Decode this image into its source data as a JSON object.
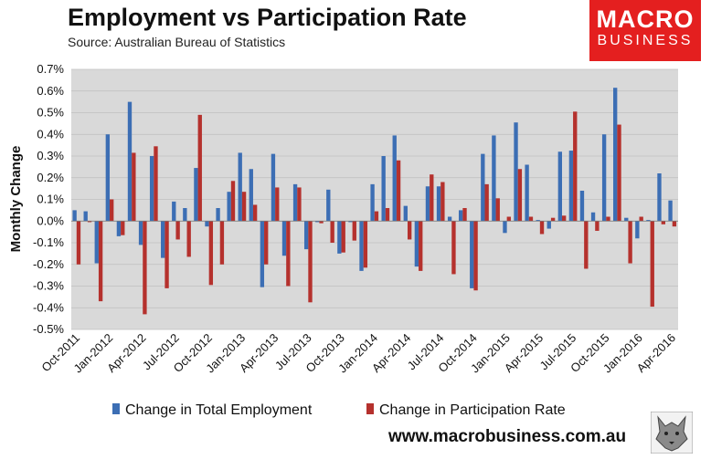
{
  "header": {
    "title": "Employment vs Participation Rate",
    "subtitle": "Source: Australian Bureau of Statistics"
  },
  "logo": {
    "line1": "MACRO",
    "line2": "BUSINESS",
    "color": "#e41f1f"
  },
  "footer": {
    "url": "www.macrobusiness.com.au",
    "emblem_icon": "wolf-icon"
  },
  "colors": {
    "employment": "#3c6eb4",
    "participation": "#b5312d",
    "plot_bg": "#d9d9d9"
  },
  "chart_data": {
    "type": "bar",
    "title": "Employment vs Participation Rate",
    "ylabel": "Monthly Change",
    "xlabel": "",
    "ylim": [
      -0.5,
      0.7
    ],
    "yticks": [
      "-0.5%",
      "-0.4%",
      "-0.3%",
      "-0.2%",
      "-0.1%",
      "0.0%",
      "0.1%",
      "0.2%",
      "0.3%",
      "0.4%",
      "0.5%",
      "0.6%",
      "0.7%"
    ],
    "x_tick_labels": [
      "Oct-2011",
      "Jan-2012",
      "Apr-2012",
      "Jul-2012",
      "Oct-2012",
      "Jan-2013",
      "Apr-2013",
      "Jul-2013",
      "Oct-2013",
      "Jan-2014",
      "Apr-2014",
      "Jul-2014",
      "Oct-2014",
      "Jan-2015",
      "Apr-2015",
      "Jul-2015",
      "Oct-2015",
      "Jan-2016",
      "Apr-2016"
    ],
    "legend_position": "bottom",
    "series": [
      {
        "name": "Change in Total Employment",
        "values": [
          0.05,
          0.045,
          -0.195,
          0.4,
          -0.07,
          0.55,
          -0.11,
          0.3,
          -0.17,
          0.09,
          0.06,
          0.245,
          -0.025,
          0.06,
          0.135,
          0.315,
          0.24,
          -0.305,
          0.31,
          -0.16,
          0.17,
          -0.13,
          -0.005,
          0.145,
          -0.15,
          -0.005,
          -0.23,
          0.17,
          0.3,
          0.395,
          0.07,
          -0.21,
          0.16,
          0.16,
          0.02,
          0.05,
          -0.31,
          0.31,
          0.395,
          -0.055,
          0.455,
          0.26,
          0.005,
          -0.035,
          0.32,
          0.325,
          0.14,
          0.04,
          0.4,
          0.615,
          0.015,
          -0.08,
          0.005,
          0.22,
          0.095
        ]
      },
      {
        "name": "Change in Participation Rate",
        "values": [
          -0.2,
          -0.005,
          -0.37,
          0.1,
          -0.065,
          0.315,
          -0.43,
          0.345,
          -0.31,
          -0.085,
          -0.165,
          0.49,
          -0.295,
          -0.2,
          0.185,
          0.135,
          0.075,
          -0.2,
          0.155,
          -0.3,
          0.155,
          -0.375,
          -0.01,
          -0.1,
          -0.145,
          -0.09,
          -0.215,
          0.045,
          0.06,
          0.28,
          -0.085,
          -0.23,
          0.215,
          0.18,
          -0.245,
          0.06,
          -0.32,
          0.17,
          0.105,
          0.02,
          0.24,
          0.02,
          -0.06,
          0.015,
          0.025,
          0.505,
          -0.22,
          -0.045,
          0.02,
          0.445,
          -0.195,
          0.02,
          -0.395,
          -0.015,
          -0.025
        ]
      }
    ]
  }
}
